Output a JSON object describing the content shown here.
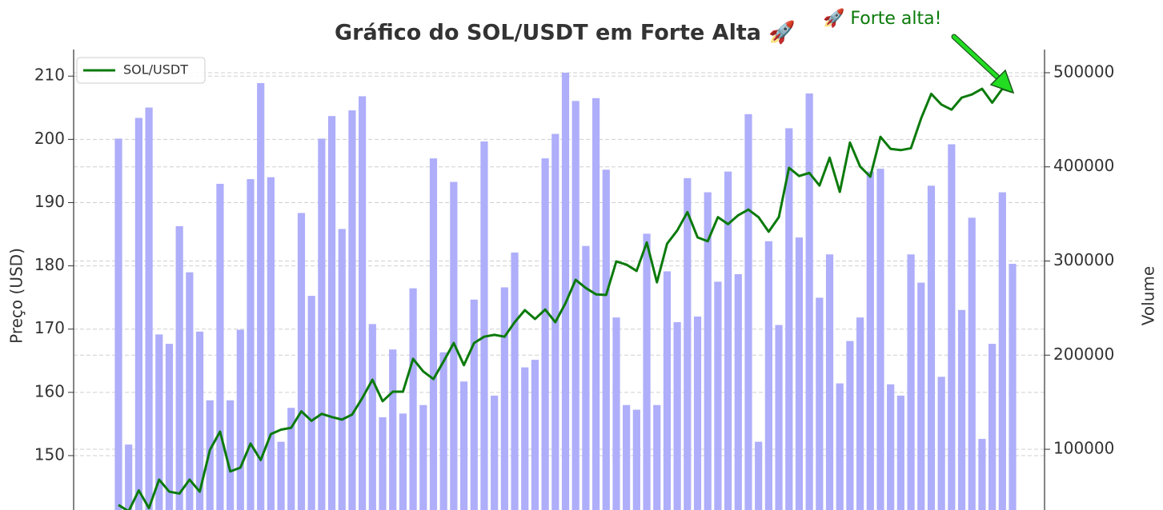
{
  "chart_data": {
    "type": "combo",
    "title": "Gráfico do SOL/USDT em Forte Alta 🚀",
    "annotation": "🚀 Forte alta!",
    "ylabel": "Preço (USD)",
    "y2label": "Volume",
    "ylim": [
      141.4,
      214.2
    ],
    "yticks": [
      150,
      160,
      170,
      180,
      190,
      200,
      210
    ],
    "y2lim": [
      35500,
      524600
    ],
    "y2ticks": [
      100000,
      200000,
      300000,
      400000,
      500000
    ],
    "grid": true,
    "legend": "upper left",
    "series": [
      {
        "name": "SOL/USDT",
        "type": "line",
        "color": "#0b7a0b",
        "values": [
          142.2,
          141.2,
          144.5,
          141.7,
          146.2,
          144.3,
          144.0,
          146.2,
          144.3,
          150.9,
          153.8,
          147.5,
          148.1,
          151.9,
          149.3,
          153.4,
          154.1,
          154.4,
          157.0,
          155.5,
          156.6,
          156.1,
          155.7,
          156.5,
          159.1,
          162.0,
          158.6,
          160.1,
          160.1,
          165.3,
          163.3,
          162.1,
          164.9,
          167.8,
          164.3,
          167.8,
          168.8,
          169.1,
          168.8,
          171.1,
          173.0,
          171.6,
          173.1,
          171.1,
          174.1,
          177.8,
          176.5,
          175.5,
          175.4,
          180.7,
          180.2,
          179.2,
          183.7,
          177.4,
          183.5,
          185.6,
          188.5,
          184.5,
          183.9,
          187.7,
          186.6,
          188.0,
          188.9,
          187.7,
          185.4,
          187.7,
          195.5,
          194.2,
          194.7,
          192.7,
          197.1,
          191.7,
          199.5,
          195.7,
          194.1,
          200.4,
          198.5,
          198.3,
          198.6,
          203.3,
          207.2,
          205.5,
          204.7,
          206.6,
          207.1,
          208.0,
          205.8,
          208.0,
          207.5
        ]
      },
      {
        "type": "bar",
        "axis": "y2",
        "color": "#aeaefa",
        "values": [
          430000,
          105000,
          452000,
          463000,
          222000,
          212000,
          337000,
          288000,
          225000,
          152000,
          382000,
          152000,
          227000,
          387000,
          489000,
          389000,
          108000,
          144000,
          351000,
          263000,
          430000,
          454000,
          334000,
          460000,
          475000,
          233000,
          134000,
          206000,
          138000,
          271000,
          147000,
          409000,
          203000,
          384000,
          172000,
          259000,
          427000,
          157000,
          272000,
          309000,
          187000,
          195000,
          409000,
          435000,
          500000,
          470000,
          316000,
          473000,
          397000,
          240000,
          147000,
          142000,
          329000,
          147000,
          289000,
          235000,
          388000,
          241000,
          373000,
          278000,
          395000,
          286000,
          456000,
          108000,
          321000,
          232000,
          441000,
          325000,
          478000,
          261000,
          307000,
          170000,
          215000,
          240000,
          395000,
          398000,
          169000,
          157000,
          307000,
          277000,
          380000,
          177000,
          424000,
          248000,
          346000,
          111000,
          212000,
          373000,
          297000
        ]
      }
    ]
  }
}
